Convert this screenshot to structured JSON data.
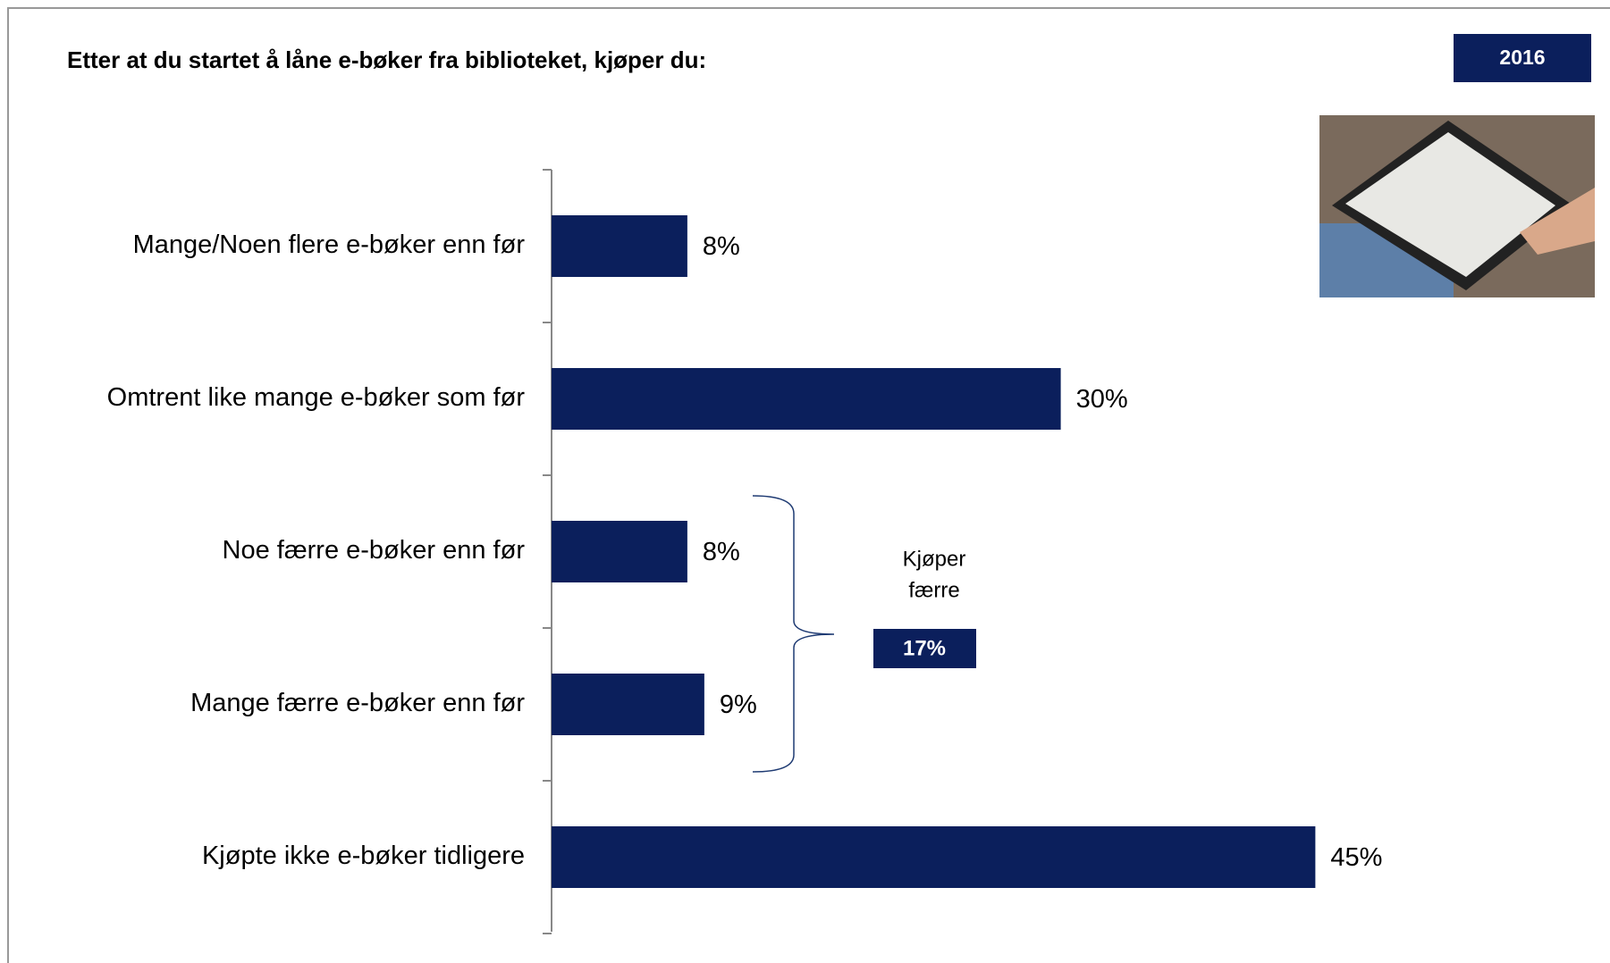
{
  "chart_data": {
    "type": "bar",
    "orientation": "horizontal",
    "title": "Etter at du startet å låne e-bøker fra biblioteket, kjøper du:",
    "badge": "2016",
    "categories": [
      "Mange/Noen flere e-bøker enn før",
      "Omtrent like mange e-bøker som før",
      "Noe færre e-bøker enn før",
      "Mange færre e-bøker enn før",
      "Kjøpte ikke e-bøker tidligere"
    ],
    "values": [
      8,
      30,
      8,
      9,
      45
    ],
    "value_labels": [
      "8%",
      "30%",
      "8%",
      "9%",
      "45%"
    ],
    "color": "#0b1f5c",
    "annotation": {
      "lines": [
        "Kjøper",
        "færre"
      ],
      "label": "17%"
    }
  }
}
